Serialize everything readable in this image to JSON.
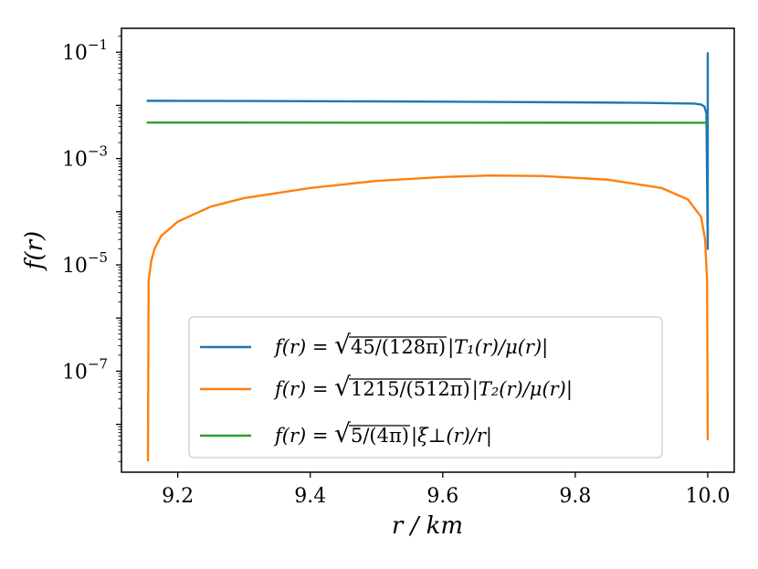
{
  "chart_data": {
    "type": "line",
    "xlabel": "r / km",
    "ylabel": "f(r)",
    "xlim": [
      9.115,
      10.04
    ],
    "ylim_log10": [
      -8.9,
      -0.55
    ],
    "yscale": "log",
    "grid": false,
    "legend_placement": "lower-center",
    "x_ticks": [
      {
        "value": 9.2,
        "label": "9.2"
      },
      {
        "value": 9.4,
        "label": "9.4"
      },
      {
        "value": 9.6,
        "label": "9.6"
      },
      {
        "value": 9.8,
        "label": "9.8"
      },
      {
        "value": 10.0,
        "label": "10.0"
      }
    ],
    "y_ticks": [
      {
        "exp": -1,
        "base": "10",
        "sup": "−1"
      },
      {
        "exp": -3,
        "base": "10",
        "sup": "−3"
      },
      {
        "exp": -5,
        "base": "10",
        "sup": "−5"
      },
      {
        "exp": -7,
        "base": "10",
        "sup": "−7"
      }
    ],
    "series": [
      {
        "name": "f(r) = √45/(128π) |T₁(r)/μ(r)|",
        "color": "#1f77b4",
        "x": [
          9.153,
          9.3,
          9.5,
          9.7,
          9.9,
          9.98,
          9.99,
          9.995,
          9.998,
          10.0,
          10.0,
          10.0
        ],
        "y": [
          0.0122,
          0.0121,
          0.0119,
          0.0116,
          0.0112,
          0.0108,
          0.0104,
          0.0095,
          0.007,
          2e-05,
          0.001,
          0.1
        ]
      },
      {
        "name": "f(r) = √1215/(512π) |T₂(r)/μ(r)|",
        "color": "#ff7f0e",
        "x": [
          9.155,
          9.156,
          9.16,
          9.165,
          9.175,
          9.2,
          9.25,
          9.3,
          9.4,
          9.5,
          9.6,
          9.67,
          9.75,
          9.85,
          9.93,
          9.97,
          9.99,
          9.996,
          9.999,
          10.0
        ],
        "y": [
          2e-09,
          5e-06,
          1.2e-05,
          2e-05,
          3.5e-05,
          6.5e-05,
          0.000125,
          0.00018,
          0.00028,
          0.00038,
          0.00045,
          0.00048,
          0.00047,
          0.0004,
          0.00028,
          0.00017,
          8e-05,
          3e-05,
          5e-06,
          5e-09
        ]
      },
      {
        "name": "f(r) = √5/(4π) |ξ⊥(r)/r|",
        "color": "#2ca02c",
        "x": [
          9.153,
          9.5,
          9.8,
          10.0
        ],
        "y": [
          0.00475,
          0.00474,
          0.00472,
          0.0047
        ]
      }
    ],
    "legend_parts": [
      {
        "pre": "f(r) = ",
        "rad": "45/(128π)",
        "post": "|T₁(r)/μ(r)|"
      },
      {
        "pre": "f(r) = ",
        "rad": "1215/(512π)",
        "post": "|T₂(r)/μ(r)|"
      },
      {
        "pre": "f(r) = ",
        "rad": "5/(4π)",
        "post": "|ξ⊥(r)/r|"
      }
    ]
  }
}
